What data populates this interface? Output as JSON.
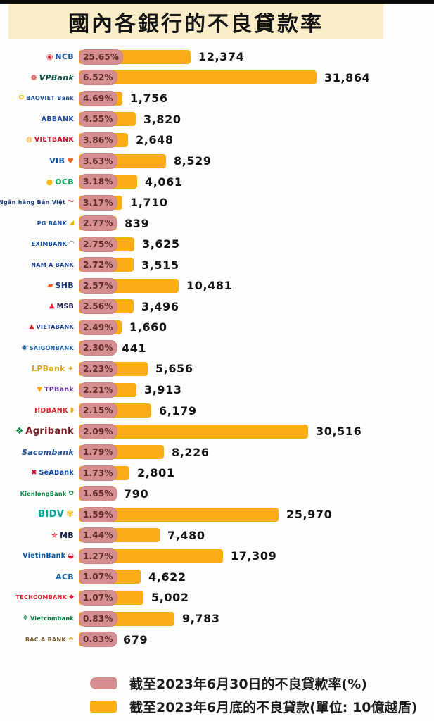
{
  "title": "國內各銀行的不良貸款率",
  "legend": {
    "ratio_label": "截至2023年6月30日的不良貸款率(%)",
    "amount_label": "截至2023年6月底的不良貸款(單位: 10億越盾)"
  },
  "colors": {
    "bar_yellow": "#fbad18",
    "pill_pink": "#d68f90",
    "pill_text": "#5f2a2c",
    "banner_cream": "#fcedc9",
    "value_text": "#131313"
  },
  "banks": [
    {
      "id": "ncb",
      "name": "NCB",
      "pct": "25.65%",
      "value": 12374,
      "value_label": "12,374",
      "text_color": "#1f55a0",
      "icon": "◉",
      "icon_color": "#d62b3a",
      "icon_side": "left",
      "size": "md"
    },
    {
      "id": "vpbank",
      "name": "VPBank",
      "pct": "6.52%",
      "value": 31864,
      "value_label": "31,864",
      "text_color": "#0b5345",
      "icon": "❁",
      "icon_color": "#e02a33",
      "icon_side": "left",
      "size": "md",
      "script": true
    },
    {
      "id": "baoviet-bank",
      "name": "BAOVIET Bank",
      "pct": "4.69%",
      "value": 1756,
      "value_label": "1,756",
      "text_color": "#1b4f9c",
      "icon": "✪",
      "icon_color": "#f5b400",
      "icon_side": "left",
      "size": "xs"
    },
    {
      "id": "abbank",
      "name": "ABBANK",
      "pct": "4.55%",
      "value": 3820,
      "value_label": "3,820",
      "text_color": "#1546a0",
      "icon": "",
      "icon_color": "",
      "icon_side": "left",
      "size": "sm"
    },
    {
      "id": "vietbank",
      "name": "VIETBANK",
      "pct": "3.86%",
      "value": 2648,
      "value_label": "2,648",
      "text_color": "#c8102e",
      "icon": "◍",
      "icon_color": "#f5a800",
      "icon_side": "left",
      "size": "sm"
    },
    {
      "id": "vib",
      "name": "VIB",
      "pct": "3.63%",
      "value": 8529,
      "value_label": "8,529",
      "text_color": "#11519e",
      "icon": "♥",
      "icon_color": "#f26822",
      "icon_side": "right",
      "size": "md"
    },
    {
      "id": "ocb",
      "name": "OCB",
      "pct": "3.18%",
      "value": 4061,
      "value_label": "4,061",
      "text_color": "#00a551",
      "icon": "●",
      "icon_color": "#fdb913",
      "icon_side": "left",
      "size": "md"
    },
    {
      "id": "bvbank",
      "name": "Ngân hàng Bản Việt",
      "pct": "3.17%",
      "value": 1710,
      "value_label": "1,710",
      "text_color": "#12357d",
      "icon": "〜",
      "icon_color": "#d62b3a",
      "icon_side": "right",
      "size": "xs"
    },
    {
      "id": "pgbank",
      "name": "PG BANK",
      "pct": "2.77%",
      "value": 839,
      "value_label": "839",
      "text_color": "#134a9c",
      "icon": "◢",
      "icon_color": "#f7a800",
      "icon_side": "right",
      "size": "xs"
    },
    {
      "id": "eximbank",
      "name": "EXIMBANK",
      "pct": "2.75%",
      "value": 3625,
      "value_label": "3,625",
      "text_color": "#0b4ea2",
      "icon": "◠",
      "icon_color": "#0b4ea2",
      "icon_side": "right",
      "size": "xs"
    },
    {
      "id": "nam-a-bank",
      "name": "NAM A BANK",
      "pct": "2.72%",
      "value": 3515,
      "value_label": "3,515",
      "text_color": "#1b3f95",
      "icon": "",
      "icon_color": "",
      "icon_side": "left",
      "size": "xs"
    },
    {
      "id": "shb",
      "name": "SHB",
      "pct": "2.57%",
      "value": 10481,
      "value_label": "10,481",
      "text_color": "#1b3281",
      "icon": "▰",
      "icon_color": "#f15a22",
      "icon_side": "left",
      "size": "md"
    },
    {
      "id": "msb",
      "name": "MSB",
      "pct": "2.56%",
      "value": 3496,
      "value_label": "3,496",
      "text_color": "#1d1d4f",
      "icon": "▲",
      "icon_color": "#ed1b2f",
      "icon_side": "left",
      "size": "sm"
    },
    {
      "id": "vietabank",
      "name": "VIETABANK",
      "pct": "2.49%",
      "value": 1660,
      "value_label": "1,660",
      "text_color": "#1b3f95",
      "icon": "▲",
      "icon_color": "#d61f26",
      "icon_side": "left",
      "size": "xs"
    },
    {
      "id": "saigonbank",
      "name": "SAIGONBANK",
      "pct": "2.30%",
      "value": 441,
      "value_label": "441",
      "text_color": "#1b5faa",
      "icon": "◉",
      "icon_color": "#1b5faa",
      "icon_side": "left",
      "size": "xs"
    },
    {
      "id": "lpbank",
      "name": "LPBank",
      "pct": "2.23%",
      "value": 5656,
      "value_label": "5,656",
      "text_color": "#e0a526",
      "icon": "✦",
      "icon_color": "#e0a526",
      "icon_side": "right",
      "size": "md"
    },
    {
      "id": "tpbank",
      "name": "TPBank",
      "pct": "2.21%",
      "value": 3913,
      "value_label": "3,913",
      "text_color": "#5c2d91",
      "icon": "▼",
      "icon_color": "#f7a800",
      "icon_side": "left",
      "size": "sm"
    },
    {
      "id": "hdbank",
      "name": "HDBANK",
      "pct": "2.15%",
      "value": 6179,
      "value_label": "6,179",
      "text_color": "#d9252a",
      "icon": "◗",
      "icon_color": "#f2a900",
      "icon_side": "right",
      "size": "sm"
    },
    {
      "id": "agribank",
      "name": "Agribank",
      "pct": "2.09%",
      "value": 30516,
      "value_label": "30,516",
      "text_color": "#7b1e26",
      "icon": "❖",
      "icon_color": "#00843d",
      "icon_side": "left",
      "size": "lg"
    },
    {
      "id": "sacombank",
      "name": "Sacombank",
      "pct": "1.79%",
      "value": 8226,
      "value_label": "8,226",
      "text_color": "#1b4f9c",
      "icon": "",
      "icon_color": "",
      "icon_side": "left",
      "size": "md",
      "script": true
    },
    {
      "id": "seabank",
      "name": "SeABank",
      "pct": "1.73%",
      "value": 2801,
      "value_label": "2,801",
      "text_color": "#003da5",
      "icon": "✖",
      "icon_color": "#e4002b",
      "icon_side": "left",
      "size": "sm"
    },
    {
      "id": "kienlongbank",
      "name": "KienlongBank",
      "pct": "1.65%",
      "value": 790,
      "value_label": "790",
      "text_color": "#00843d",
      "icon": "✿",
      "icon_color": "#00843d",
      "icon_side": "right",
      "size": "xs"
    },
    {
      "id": "bidv",
      "name": "BIDV",
      "pct": "1.59%",
      "value": 25970,
      "value_label": "25,970",
      "text_color": "#00a69c",
      "icon": "✾",
      "icon_color": "#f2c200",
      "icon_side": "right",
      "size": "lg"
    },
    {
      "id": "mb",
      "name": "MB",
      "pct": "1.44%",
      "value": 7480,
      "value_label": "7,480",
      "text_color": "#141b4d",
      "icon": "✯",
      "icon_color": "#ed1b2f",
      "icon_side": "left",
      "size": "md"
    },
    {
      "id": "vietinbank",
      "name": "VietinBank",
      "pct": "1.27%",
      "value": 17309,
      "value_label": "17,309",
      "text_color": "#0b57a4",
      "icon": "◒",
      "icon_color": "#e4002b",
      "icon_side": "right",
      "size": "sm"
    },
    {
      "id": "acb",
      "name": "ACB",
      "pct": "1.07%",
      "value": 4622,
      "value_label": "4,622",
      "text_color": "#0f63a6",
      "icon": "",
      "icon_color": "",
      "icon_side": "left",
      "size": "md"
    },
    {
      "id": "techcombank",
      "name": "TECHCOMBANK",
      "pct": "1.07%",
      "value": 5002,
      "value_label": "5,002",
      "text_color": "#ed1b2f",
      "icon": "◆",
      "icon_color": "#ed1b2f",
      "icon_side": "right",
      "size": "xs"
    },
    {
      "id": "vietcombank",
      "name": "Vietcombank",
      "pct": "0.83%",
      "value": 9783,
      "value_label": "9,783",
      "text_color": "#007a3d",
      "icon": "❉",
      "icon_color": "#007a3d",
      "icon_side": "left",
      "size": "xs"
    },
    {
      "id": "bac-a-bank",
      "name": "BAC A BANK",
      "pct": "0.83%",
      "value": 679,
      "value_label": "679",
      "text_color": "#7a5c2e",
      "icon": "☘",
      "icon_color": "#c9a227",
      "icon_side": "right",
      "size": "xs"
    }
  ],
  "chart_data": {
    "type": "bar",
    "orientation": "horizontal",
    "title": "國內各銀行的不良貸款率",
    "categories": [
      "NCB",
      "VPBank",
      "BAOVIET Bank",
      "ABBANK",
      "VIETBANK",
      "VIB",
      "OCB",
      "Ngân hàng Bản Việt",
      "PG BANK",
      "EXIMBANK",
      "NAM A BANK",
      "SHB",
      "MSB",
      "VIETABANK",
      "SAIGONBANK",
      "LPBank",
      "TPBank",
      "HDBANK",
      "Agribank",
      "Sacombank",
      "SeABank",
      "KienlongBank",
      "BIDV",
      "MB",
      "VietinBank",
      "ACB",
      "TECHCOMBANK",
      "Vietcombank",
      "BAC A BANK"
    ],
    "series": [
      {
        "name": "截至2023年6月30日的不良貸款率(%)",
        "unit": "%",
        "values": [
          25.65,
          6.52,
          4.69,
          4.55,
          3.86,
          3.63,
          3.18,
          3.17,
          2.77,
          2.75,
          2.72,
          2.57,
          2.56,
          2.49,
          2.3,
          2.23,
          2.21,
          2.15,
          2.09,
          1.79,
          1.73,
          1.65,
          1.59,
          1.44,
          1.27,
          1.07,
          1.07,
          0.83,
          0.83
        ]
      },
      {
        "name": "截至2023年6月底的不良貸款(單位: 10億越盾)",
        "unit": "10億越盾",
        "values": [
          12374,
          31864,
          1756,
          3820,
          2648,
          8529,
          4061,
          1710,
          839,
          3625,
          3515,
          10481,
          3496,
          1660,
          441,
          5656,
          3913,
          6179,
          30516,
          8226,
          2801,
          790,
          25970,
          7480,
          17309,
          4622,
          5002,
          9783,
          679
        ]
      }
    ],
    "legend_position": "bottom",
    "grid": false
  }
}
